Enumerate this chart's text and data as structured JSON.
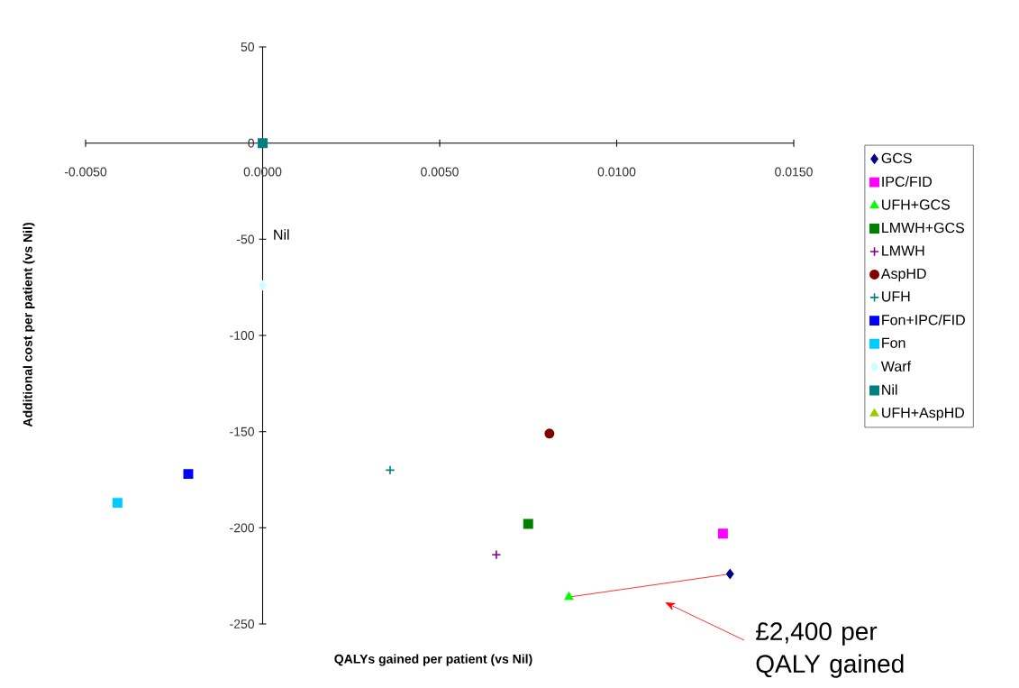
{
  "chart_data": {
    "type": "scatter",
    "xlabel": "QALYs gained per patient (vs Nil)",
    "ylabel": "Additional cost per patient (vs Nil)",
    "xlim": [
      -0.005,
      0.015
    ],
    "ylim": [
      -250,
      50
    ],
    "xticks": [
      {
        "value": -0.005,
        "label": "-0.0050"
      },
      {
        "value": 0,
        "label": "0.0000"
      },
      {
        "value": 0.005,
        "label": "0.0050"
      },
      {
        "value": 0.01,
        "label": "0.0100"
      },
      {
        "value": 0.015,
        "label": "0.0150"
      }
    ],
    "yticks": [
      50,
      0,
      -50,
      -100,
      -150,
      -200,
      -250
    ],
    "legend": "right",
    "grid": false,
    "series": [
      {
        "name": "GCS",
        "color": "#000080",
        "marker": "diamond",
        "x": [
          0.0132
        ],
        "values": [
          -224
        ]
      },
      {
        "name": "IPC/FID",
        "color": "#ff00ff",
        "marker": "square",
        "x": [
          0.013
        ],
        "values": [
          -203
        ]
      },
      {
        "name": "UFH+GCS",
        "color": "#00ff00",
        "marker": "triangle",
        "x": [
          0.00865
        ],
        "values": [
          -236
        ]
      },
      {
        "name": "LMWH+GCS",
        "color": "#008000",
        "marker": "square",
        "x": [
          0.0075
        ],
        "values": [
          -198
        ]
      },
      {
        "name": "LMWH",
        "color": "#800080",
        "marker": "cross",
        "x": [
          0.0066
        ],
        "values": [
          -214
        ]
      },
      {
        "name": "AspHD",
        "color": "#800000",
        "marker": "circle",
        "x": [
          0.0081
        ],
        "values": [
          -151
        ]
      },
      {
        "name": "UFH",
        "color": "#008080",
        "marker": "cross",
        "x": [
          0.0036
        ],
        "values": [
          -170
        ]
      },
      {
        "name": "Fon+IPC/FID",
        "color": "#0000ff",
        "marker": "square",
        "x": [
          -0.0021
        ],
        "values": [
          -172
        ]
      },
      {
        "name": "Fon",
        "color": "#00ccff",
        "marker": "square",
        "x": [
          -0.0041
        ],
        "values": [
          -187
        ]
      },
      {
        "name": "Warf",
        "color": "#ccffff",
        "marker": "diamond",
        "x": [
          0.0
        ],
        "values": [
          -74
        ]
      },
      {
        "name": "Nil",
        "color": "#008080",
        "marker": "square",
        "x": [
          0.0
        ],
        "values": [
          0
        ]
      },
      {
        "name": "UFH+AspHD",
        "color": "#99cc00",
        "marker": "triangle",
        "x": [
          null
        ],
        "values": [
          null
        ]
      },
      {
        "type": "line",
        "color": "#ff0000",
        "marker": "none",
        "x": [
          0.00865,
          0.0132
        ],
        "values": [
          -236,
          -224
        ]
      }
    ],
    "annotations": [
      "Nil",
      "£2,400 per QALY gained"
    ]
  }
}
